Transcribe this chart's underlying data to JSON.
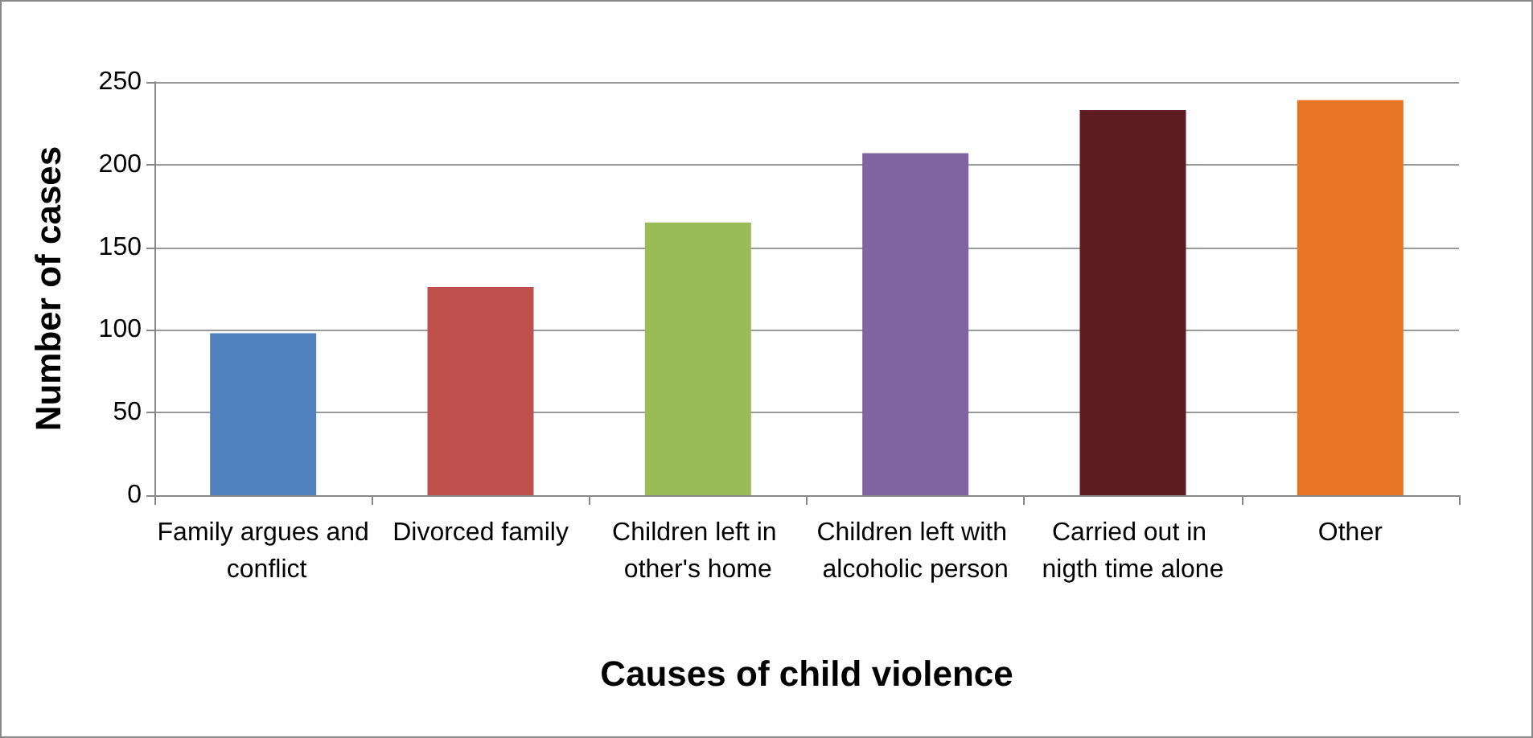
{
  "chart_data": {
    "type": "bar",
    "xlabel": "Causes of child violence",
    "ylabel": "Number of cases",
    "categories": [
      "Family argues and conflict",
      "Divorced family",
      "Children left in other's home",
      "Children left with alcoholic person",
      "Carried out in nigth time alone",
      "Other"
    ],
    "values": [
      98,
      126,
      165,
      207,
      233,
      239
    ],
    "colors": [
      "#4f81bd",
      "#c0504d",
      "#9bbb59",
      "#8064a2",
      "#5e1d22",
      "#e87524"
    ],
    "ylim": [
      0,
      250
    ],
    "yticks": [
      0,
      50,
      100,
      150,
      200,
      250
    ],
    "grid": "y"
  }
}
